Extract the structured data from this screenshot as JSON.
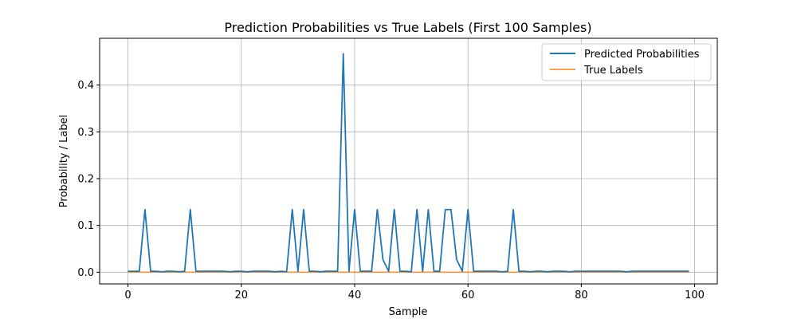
{
  "chart_data": {
    "type": "line",
    "title": "Prediction Probabilities vs True Labels (First 100 Samples)",
    "xlabel": "Sample",
    "ylabel": "Probability / Label",
    "xlim": [
      -5,
      104
    ],
    "ylim": [
      -0.025,
      0.5
    ],
    "xticks": [
      0,
      20,
      40,
      60,
      80,
      100
    ],
    "yticks": [
      0.0,
      0.1,
      0.2,
      0.3,
      0.4
    ],
    "ytick_labels": [
      "0.0",
      "0.1",
      "0.2",
      "0.3",
      "0.4"
    ],
    "grid": true,
    "legend_position": "top-right",
    "series": [
      {
        "name": "Predicted Probabilities",
        "color": "#1f77b4",
        "values": [
          0.002,
          0.002,
          0.002,
          0.134,
          0.002,
          0.002,
          0.001,
          0.002,
          0.002,
          0.001,
          0.002,
          0.134,
          0.002,
          0.002,
          0.002,
          0.002,
          0.002,
          0.002,
          0.001,
          0.002,
          0.002,
          0.001,
          0.002,
          0.002,
          0.002,
          0.002,
          0.001,
          0.002,
          0.001,
          0.134,
          0.002,
          0.134,
          0.002,
          0.002,
          0.001,
          0.002,
          0.002,
          0.002,
          0.467,
          0.002,
          0.134,
          0.002,
          0.002,
          0.002,
          0.134,
          0.027,
          0.002,
          0.134,
          0.002,
          0.002,
          0.001,
          0.134,
          0.002,
          0.134,
          0.002,
          0.002,
          0.134,
          0.134,
          0.027,
          0.002,
          0.134,
          0.002,
          0.002,
          0.002,
          0.002,
          0.002,
          0.001,
          0.002,
          0.134,
          0.002,
          0.002,
          0.001,
          0.002,
          0.002,
          0.001,
          0.002,
          0.002,
          0.002,
          0.001,
          0.002,
          0.002,
          0.002,
          0.002,
          0.002,
          0.002,
          0.002,
          0.002,
          0.002,
          0.001,
          0.002,
          0.002,
          0.002,
          0.002,
          0.002,
          0.002,
          0.002,
          0.002,
          0.002,
          0.002,
          0.002
        ]
      },
      {
        "name": "True Labels",
        "color": "#ff7f0e",
        "values": [
          0,
          0,
          0,
          0,
          0,
          0,
          0,
          0,
          0,
          0,
          0,
          0,
          0,
          0,
          0,
          0,
          0,
          0,
          0,
          0,
          0,
          0,
          0,
          0,
          0,
          0,
          0,
          0,
          0,
          0,
          0,
          0,
          0,
          0,
          0,
          0,
          0,
          0,
          0,
          0,
          0,
          0,
          0,
          0,
          0,
          0,
          0,
          0,
          0,
          0,
          0,
          0,
          0,
          0,
          0,
          0,
          0,
          0,
          0,
          0,
          0,
          0,
          0,
          0,
          0,
          0,
          0,
          0,
          0,
          0,
          0,
          0,
          0,
          0,
          0,
          0,
          0,
          0,
          0,
          0,
          0,
          0,
          0,
          0,
          0,
          0,
          0,
          0,
          0,
          0,
          0,
          0,
          0,
          0,
          0,
          0,
          0,
          0,
          0,
          0
        ]
      }
    ]
  }
}
